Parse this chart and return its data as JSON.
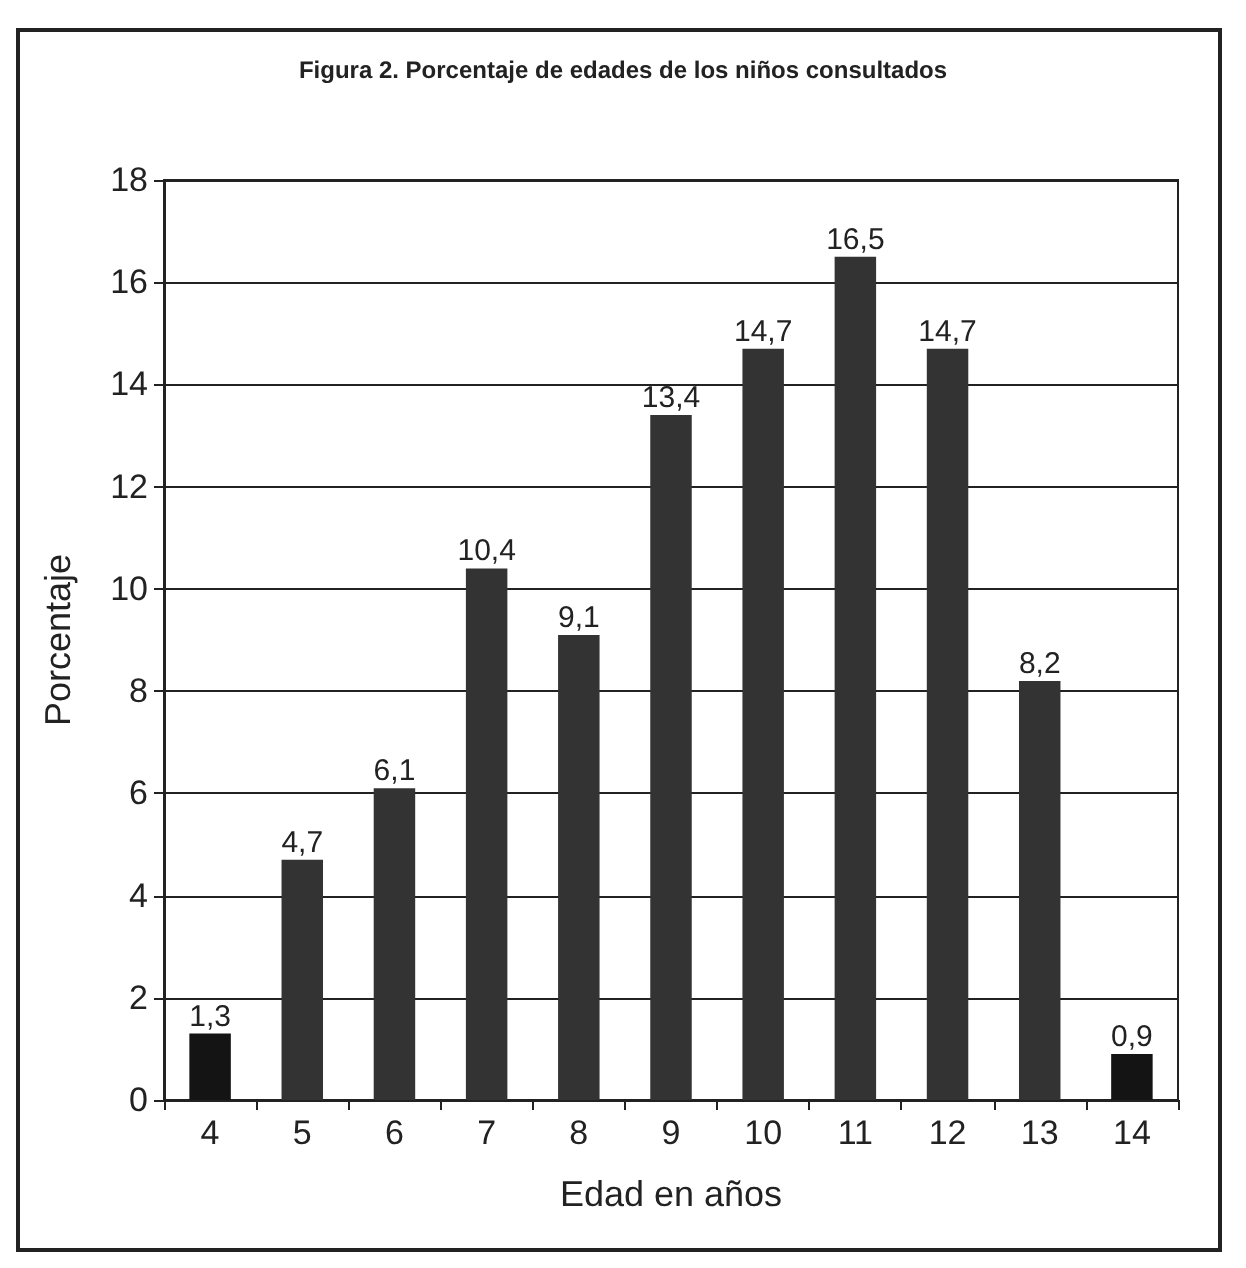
{
  "chart_data": {
    "type": "bar",
    "title": "Figura 2. Porcentaje de edades de los niños consultados",
    "xlabel": "Edad en años",
    "ylabel": "Porcentaje",
    "categories": [
      "4",
      "5",
      "6",
      "7",
      "8",
      "9",
      "10",
      "11",
      "12",
      "13",
      "14"
    ],
    "values": [
      1.3,
      4.7,
      6.1,
      10.4,
      9.1,
      13.4,
      14.7,
      16.5,
      14.7,
      8.2,
      0.9
    ],
    "value_labels": [
      "1,3",
      "4,7",
      "6,1",
      "10,4",
      "9,1",
      "13,4",
      "14,7",
      "16,5",
      "14,7",
      "8,2",
      "0,9"
    ],
    "colors": [
      "#141414",
      "#333333",
      "#333333",
      "#333333",
      "#333333",
      "#333333",
      "#333333",
      "#333333",
      "#333333",
      "#333333",
      "#141414"
    ],
    "ylim": [
      0,
      18
    ],
    "yticks": [
      0,
      2,
      4,
      6,
      8,
      10,
      12,
      14,
      16,
      18
    ],
    "grid": "y"
  }
}
